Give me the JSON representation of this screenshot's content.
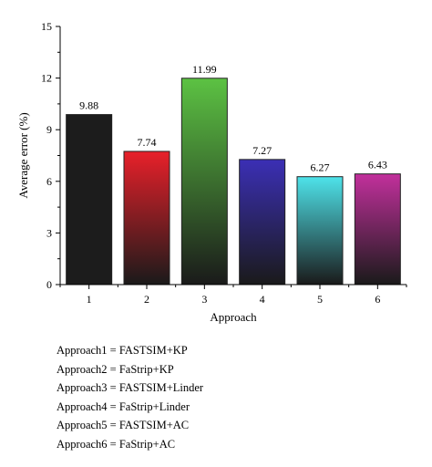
{
  "chart_data": {
    "type": "bar",
    "categories": [
      "1",
      "2",
      "3",
      "4",
      "5",
      "6"
    ],
    "values": [
      9.88,
      7.74,
      11.99,
      7.27,
      6.27,
      6.43
    ],
    "value_labels": [
      "9.88",
      "7.74",
      "11.99",
      "7.27",
      "6.27",
      "6.43"
    ],
    "xlabel": "Approach",
    "ylabel": "Average error (%)",
    "ylim": [
      0,
      15
    ],
    "yticks": [
      0,
      3,
      6,
      9,
      12,
      15
    ],
    "grid": false,
    "bar_gradients": [
      {
        "top": "#1c1c1c",
        "bottom": "#1c1c1c"
      },
      {
        "top": "#e8202a",
        "bottom": "#1a1a1a"
      },
      {
        "top": "#5cc243",
        "bottom": "#1a1a1a"
      },
      {
        "top": "#3b2fb5",
        "bottom": "#1a1a1a"
      },
      {
        "top": "#4ee3ea",
        "bottom": "#1a1a1a"
      },
      {
        "top": "#c2309c",
        "bottom": "#1a1a1a"
      }
    ]
  },
  "legend_lines": [
    "Approach1 = FASTSIM+KP",
    "Approach2 = FaStrip+KP",
    "Approach3 = FASTSIM+Linder",
    "Approach4 = FaStrip+Linder",
    "Approach5 = FASTSIM+AC",
    "Approach6 = FaStrip+AC"
  ]
}
